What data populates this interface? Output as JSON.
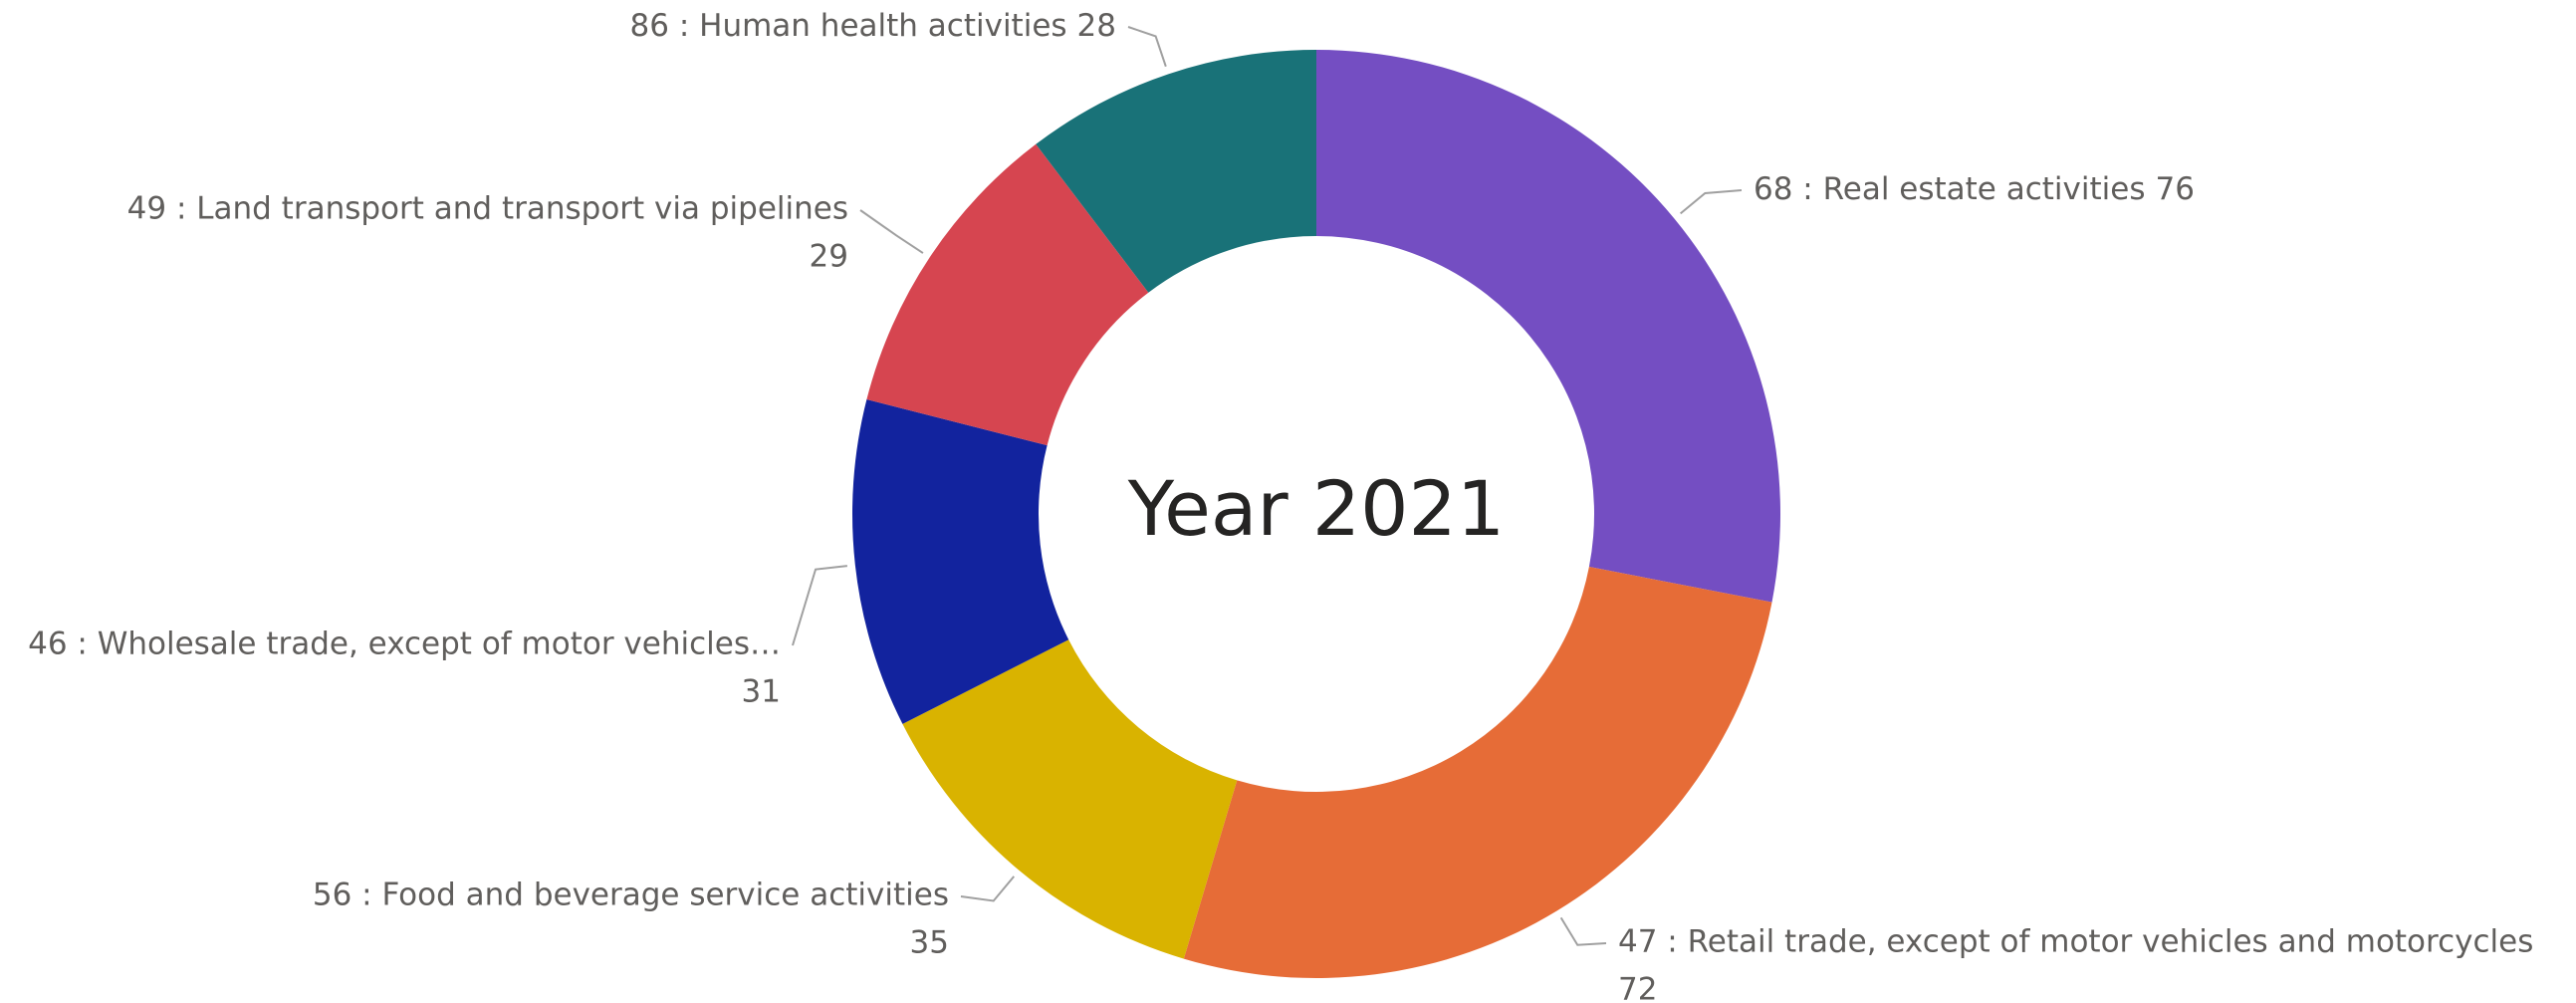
{
  "chart_data": {
    "type": "donut",
    "center_label": "Year 2021",
    "categories": [
      "68 : Real estate activities",
      "47 : Retail trade, except of motor vehicles and motorcycles",
      "56 : Food and beverage service activities",
      "46 : Wholesale trade, except of motor vehicles…",
      "49 : Land transport and transport via pipelines",
      "86 : Human health activities"
    ],
    "values": [
      76,
      72,
      35,
      31,
      29,
      28
    ],
    "colors": [
      "#744ec2",
      "#e66c37",
      "#d9b300",
      "#12239e",
      "#d64550",
      "#197278"
    ]
  }
}
